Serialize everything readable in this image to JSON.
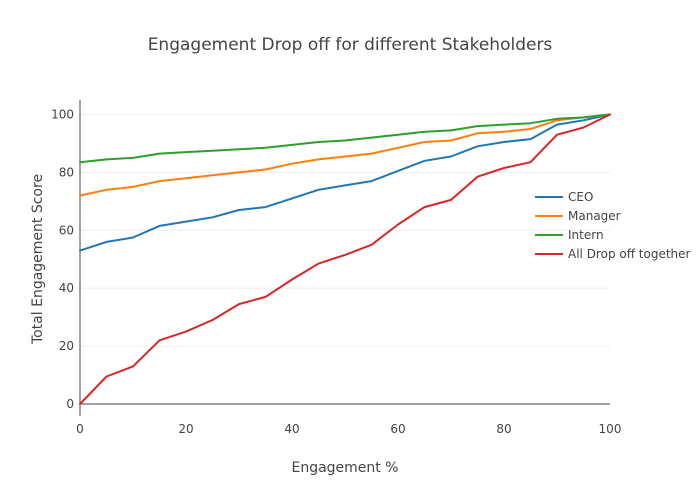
{
  "chart_data": {
    "type": "line",
    "title": "Engagement Drop off for different Stakeholders",
    "xlabel": "Engagement %",
    "ylabel": "Total Engagement Score",
    "xlim": [
      0,
      100
    ],
    "ylim": [
      0,
      105
    ],
    "xticks": [
      0,
      20,
      40,
      60,
      80,
      100
    ],
    "yticks": [
      0,
      20,
      40,
      60,
      80,
      100
    ],
    "grid": true,
    "legend_position": "right",
    "x": [
      0,
      5,
      10,
      15,
      20,
      25,
      30,
      35,
      40,
      45,
      50,
      55,
      60,
      65,
      70,
      75,
      80,
      85,
      90,
      95,
      100
    ],
    "series": [
      {
        "name": "CEO",
        "color": "#1f77b4",
        "values": [
          53,
          56,
          57.5,
          61.5,
          63,
          64.5,
          67,
          68,
          71,
          74,
          75.5,
          77,
          80.5,
          84,
          85.5,
          89,
          90.5,
          91.5,
          96.5,
          98,
          100
        ]
      },
      {
        "name": "Manager",
        "color": "#ff7f0e",
        "values": [
          72,
          74,
          75,
          77,
          78,
          79,
          80,
          81,
          83,
          84.5,
          85.5,
          86.5,
          88.5,
          90.5,
          91,
          93.5,
          94,
          95,
          98,
          99,
          100
        ]
      },
      {
        "name": "Intern",
        "color": "#2ca02c",
        "values": [
          83.5,
          84.5,
          85,
          86.5,
          87,
          87.5,
          88,
          88.5,
          89.5,
          90.5,
          91,
          92,
          93,
          94,
          94.5,
          96,
          96.5,
          97,
          98.5,
          99,
          100
        ]
      },
      {
        "name": "All Drop off together",
        "color": "#d62728",
        "values": [
          0,
          9.5,
          13,
          22,
          25,
          29,
          34.5,
          37,
          43,
          48.5,
          51.5,
          55,
          62,
          68,
          70.5,
          78.5,
          81.5,
          83.5,
          93,
          95.5,
          100
        ]
      }
    ]
  }
}
